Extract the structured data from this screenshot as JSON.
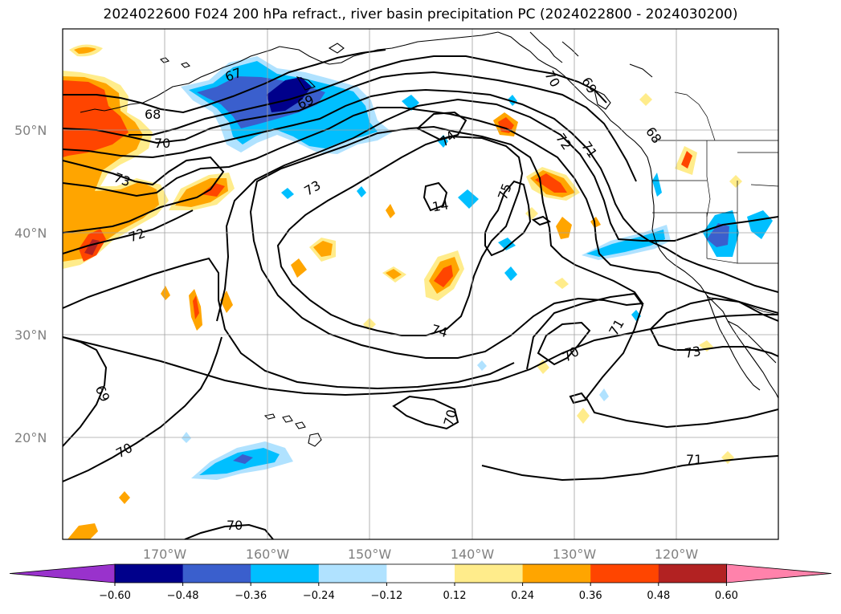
{
  "title": "2024022600 F024 200 hPa refract., river basin precipitation PC (2024022800 - 2024030200)",
  "lat_labels": [
    "50°N",
    "40°N",
    "30°N",
    "20°N"
  ],
  "lon_labels": [
    "170°W",
    "160°W",
    "150°W",
    "140°W",
    "130°W",
    "120°W"
  ],
  "contour_labels": [
    "67",
    "68",
    "69",
    "70",
    "73",
    "72",
    "74",
    "73",
    "14",
    "75",
    "69",
    "70",
    "68",
    "71",
    "72",
    "69",
    "70",
    "71",
    "70",
    "70",
    "73",
    "71",
    "70"
  ],
  "colorbar": {
    "ticks": [
      "−0.60",
      "−0.48",
      "−0.36",
      "−0.24",
      "−0.12",
      "0.12",
      "0.24",
      "0.36",
      "0.48",
      "0.60"
    ],
    "colors": [
      "#9932CC",
      "#00008B",
      "#3A5FCD",
      "#00BFFF",
      "#B0E2FF",
      "#FFFFFF",
      "#FFEC8B",
      "#FFA500",
      "#FF4500",
      "#B22222",
      "#FF82AB"
    ]
  },
  "field_colors": {
    "neg1": "#B0E2FF",
    "neg2": "#00BFFF",
    "neg3": "#3A5FCD",
    "neg4": "#00008B",
    "pos1": "#FFEC8B",
    "pos2": "#FFA500",
    "pos3": "#FF4500",
    "pos4": "#B22222"
  }
}
